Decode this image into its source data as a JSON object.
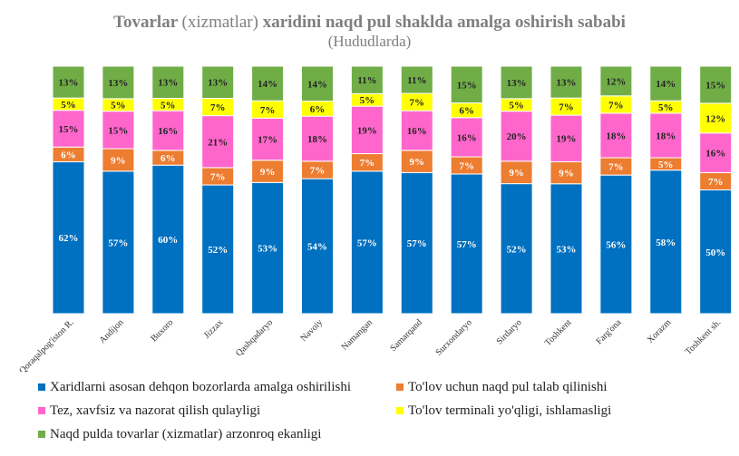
{
  "title": {
    "part1": "Tovarlar",
    "part2": "(xizmatlar)",
    "part3": "xaridini naqd pul shaklda amalga oshirish sababi"
  },
  "subtitle": "(Hududlarda)",
  "chart_data": {
    "type": "bar",
    "stacked": true,
    "percent": true,
    "categories": [
      "Qoraqalpog'iston R.",
      "Andijon",
      "Buxoro",
      "Jizzax",
      "Qashqadaryo",
      "Navoiy",
      "Namangan",
      "Samarqand",
      "Surxondaryo",
      "Sirdaryo",
      "Toshkent",
      "Farg'ona",
      "Xorazm",
      "Toshkent sh."
    ],
    "series": [
      {
        "name": "Xaridlarni asosan dehqon bozorlarda amalga oshirilishi",
        "color": "#0070C0",
        "values": [
          62,
          57,
          60,
          52,
          53,
          54,
          57,
          57,
          57,
          52,
          53,
          56,
          58,
          50
        ]
      },
      {
        "name": "To'lov uchun naqd pul talab qilinishi",
        "color": "#ED7D31",
        "values": [
          6,
          9,
          6,
          7,
          9,
          7,
          7,
          9,
          7,
          9,
          9,
          7,
          5,
          7
        ]
      },
      {
        "name": "Tez, xavfsiz va nazorat qilish qulayligi",
        "color": "#FF66CC",
        "values": [
          15,
          15,
          16,
          21,
          17,
          18,
          19,
          16,
          16,
          20,
          19,
          18,
          18,
          16
        ]
      },
      {
        "name": "To'lov terminali yo'qligi, ishlamasligi",
        "color": "#FFFF00",
        "values": [
          5,
          5,
          5,
          7,
          7,
          6,
          5,
          7,
          6,
          5,
          7,
          7,
          5,
          12
        ]
      },
      {
        "name": "Naqd pulda tovarlar (xizmatlar) arzonroq ekanligi",
        "color": "#70AD47",
        "values": [
          13,
          13,
          13,
          13,
          14,
          14,
          11,
          11,
          15,
          13,
          13,
          12,
          14,
          15
        ]
      }
    ],
    "data_labels": true,
    "label_suffix": "%",
    "legend_position": "bottom",
    "grid": false
  }
}
